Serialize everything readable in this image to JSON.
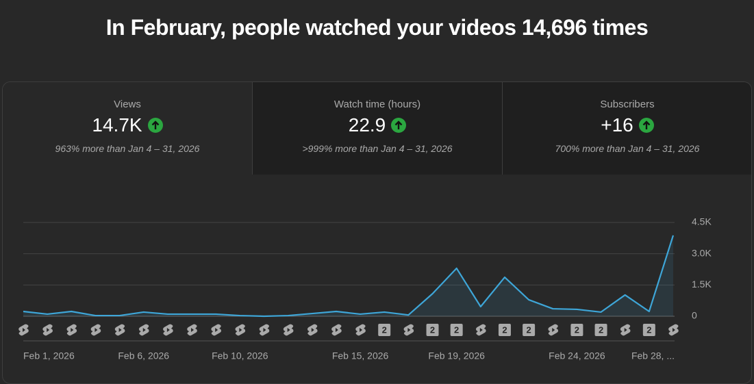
{
  "header": {
    "title": "In February, people watched your videos 14,696 times"
  },
  "cards": [
    {
      "label": "Views",
      "value": "14.7K",
      "comparison": "963% more than Jan 4 – 31, 2026"
    },
    {
      "label": "Watch time (hours)",
      "value": "22.9",
      "comparison": ">999% more than Jan 4 – 31, 2026"
    },
    {
      "label": "Subscribers",
      "value": "+16",
      "comparison": "700% more than Jan 4 – 31, 2026"
    }
  ],
  "chart_data": {
    "type": "line",
    "categories": [
      "Feb 1, 2026",
      null,
      null,
      null,
      null,
      "Feb 6, 2026",
      null,
      null,
      null,
      "Feb 10, 2026",
      null,
      null,
      null,
      null,
      "Feb 15, 2026",
      null,
      null,
      null,
      "Feb 19, 2026",
      null,
      null,
      null,
      null,
      "Feb 24, 2026",
      null,
      null,
      null,
      "Feb 28, ..."
    ],
    "series": [
      {
        "name": "Views",
        "color": "#3ea6d8",
        "values": [
          230,
          100,
          230,
          30,
          30,
          200,
          100,
          100,
          100,
          30,
          0,
          30,
          130,
          230,
          100,
          200,
          60,
          1080,
          2300,
          460,
          1870,
          790,
          360,
          330,
          200,
          1020,
          230,
          3880
        ]
      }
    ],
    "day_markers": [
      null,
      null,
      null,
      null,
      null,
      null,
      null,
      null,
      null,
      null,
      null,
      null,
      null,
      null,
      null,
      "2",
      null,
      "2",
      "2",
      null,
      "2",
      "2",
      null,
      "2",
      "2",
      null,
      "2",
      null
    ],
    "ylim": [
      0,
      4500
    ],
    "yticks": [
      0,
      {
        "value": 1500,
        "label": "1.5K"
      },
      {
        "value": 3000,
        "label": "3.0K"
      },
      {
        "value": 4500,
        "label": "4.5K"
      }
    ],
    "grid": true
  }
}
